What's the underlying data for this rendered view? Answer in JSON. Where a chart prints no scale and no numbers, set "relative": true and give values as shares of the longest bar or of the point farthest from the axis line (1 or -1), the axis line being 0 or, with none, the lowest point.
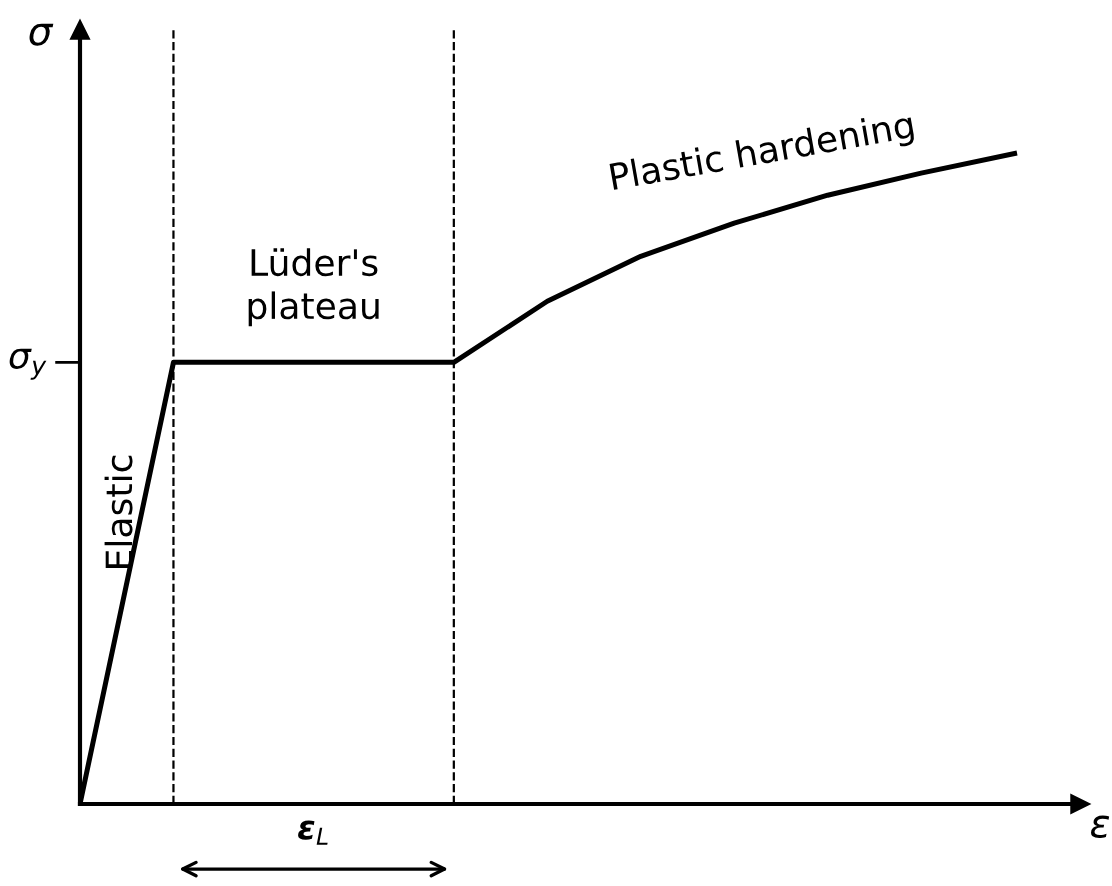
{
  "chart_data": {
    "type": "line",
    "relative": true,
    "xlabel": "ε",
    "ylabel": "σ",
    "categories": [
      null,
      null,
      null,
      null,
      null,
      null,
      null,
      null,
      null,
      null,
      null
    ],
    "series": [
      {
        "color": "#000000",
        "values": [
          0,
          0.679,
          0.679,
          0.679,
          0.679,
          0.773,
          0.842,
          0.893,
          0.936,
          0.97,
          1.0
        ]
      }
    ],
    "annotations": [
      "σ$_{y}$",
      "Elastic",
      "Lüder's\nplateau",
      "Plastic hardening",
      "ε$_{L}$"
    ],
    "legend": false,
    "marker": "none",
    "line_style": "solid"
  }
}
